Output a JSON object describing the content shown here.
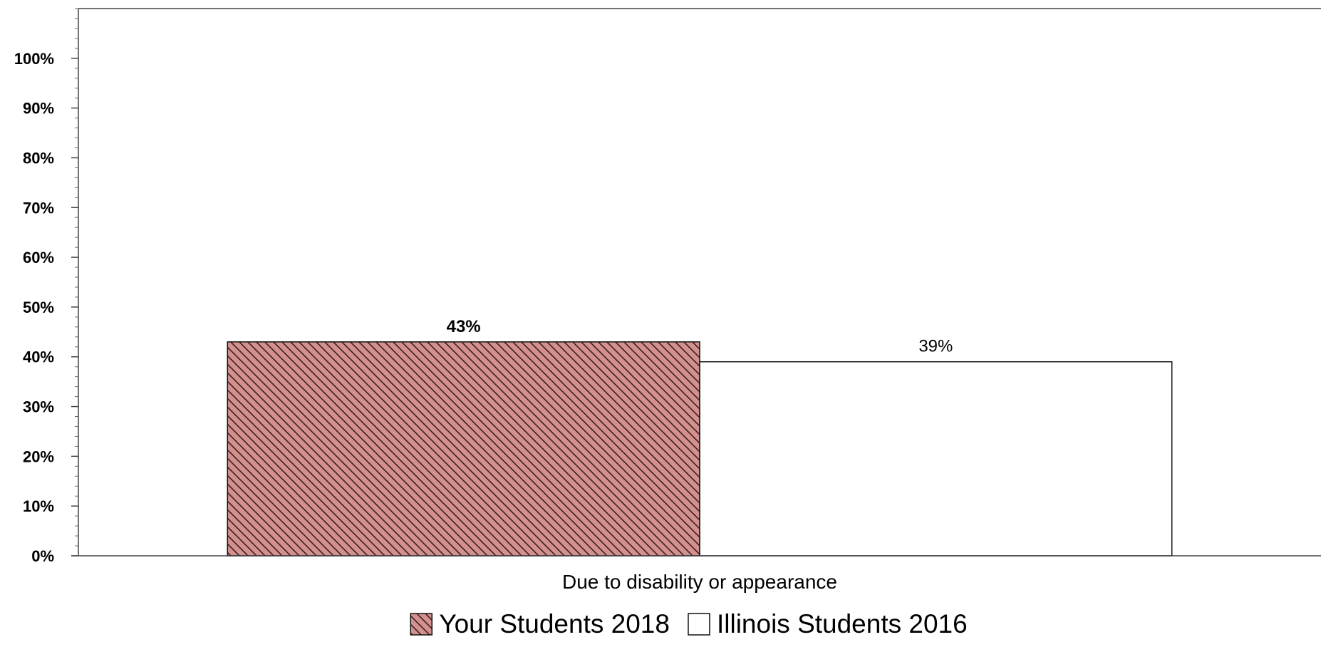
{
  "chart_data": {
    "type": "bar",
    "categories": [
      "Due to disability or appearance"
    ],
    "series": [
      {
        "name": "Your Students 2018",
        "values": [
          43
        ],
        "data_labels": [
          "43%"
        ],
        "color": "#d4908c",
        "pattern": "diagonal-hatch"
      },
      {
        "name": "Illinois Students 2016",
        "values": [
          39
        ],
        "data_labels": [
          "39%"
        ],
        "color": "#ffffff",
        "pattern": "none"
      }
    ],
    "ylim": [
      0,
      110
    ],
    "y_ticks": [
      0,
      10,
      20,
      30,
      40,
      50,
      60,
      70,
      80,
      90,
      100
    ],
    "y_tick_labels": [
      "0%",
      "10%",
      "20%",
      "30%",
      "40%",
      "50%",
      "60%",
      "70%",
      "80%",
      "90%",
      "100%"
    ],
    "title": "",
    "xlabel": "",
    "ylabel": "",
    "grid": false,
    "legend_position": "bottom-center"
  }
}
